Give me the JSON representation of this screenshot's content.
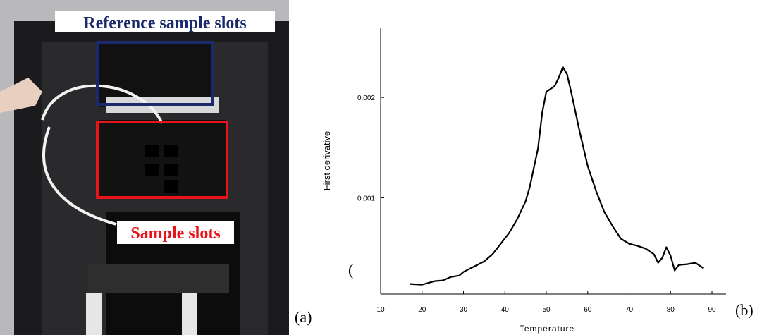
{
  "panel_a": {
    "label": "(a)",
    "reference_label": "Reference sample slots",
    "sample_label": "Sample slots"
  },
  "stray_text": "(",
  "chart_data": {
    "type": "line",
    "panel_label": "(b)",
    "x_label": "Temperature",
    "y_label": "First derivative",
    "x": [
      17,
      20,
      23,
      25,
      27,
      29,
      30,
      33,
      35,
      37,
      39,
      41,
      43,
      45,
      46,
      48,
      49,
      50,
      52,
      53,
      54,
      55,
      56,
      58,
      60,
      62,
      64,
      66,
      68,
      70,
      72,
      74,
      76,
      77,
      78,
      79,
      80,
      81,
      82,
      84,
      86,
      88
    ],
    "values": [
      0.000141,
      0.000134,
      0.000169,
      0.000176,
      0.000211,
      0.000225,
      0.000261,
      0.000324,
      0.000366,
      0.000437,
      0.000542,
      0.000648,
      0.000789,
      0.000965,
      0.001106,
      0.001493,
      0.001845,
      0.002056,
      0.002113,
      0.002197,
      0.002303,
      0.002232,
      0.002056,
      0.001669,
      0.001317,
      0.00107,
      0.000859,
      0.000718,
      0.000592,
      0.000542,
      0.000521,
      0.000493,
      0.000437,
      0.000352,
      0.000401,
      0.000507,
      0.000423,
      0.000275,
      0.000331,
      0.000338,
      0.000352,
      0.000296
    ],
    "color": "#000000",
    "xlim": [
      10,
      93.4
    ],
    "ylim": [
      4e-05,
      0.00269
    ],
    "xticks": [
      10,
      20,
      30,
      40,
      50,
      60,
      70,
      80,
      90
    ],
    "yticks": [
      0.001,
      0.002
    ]
  }
}
